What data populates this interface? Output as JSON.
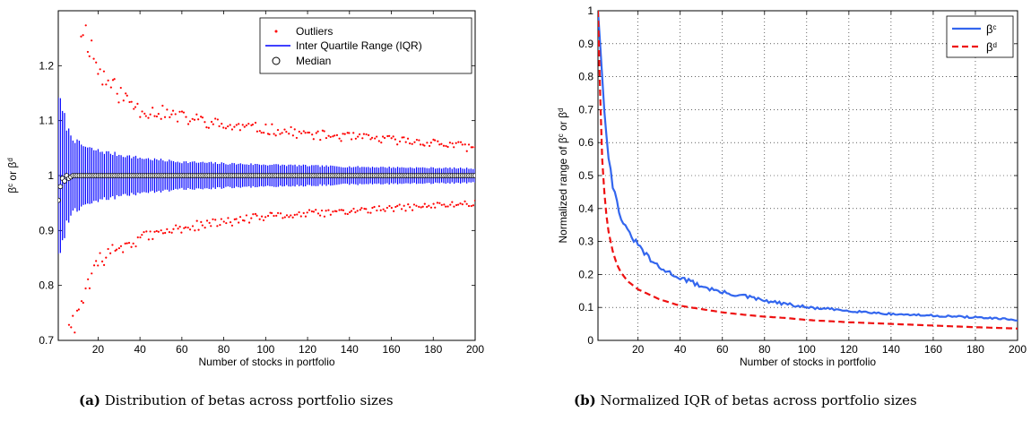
{
  "chart_data": [
    {
      "type": "scatter",
      "label": "(a)",
      "caption": "Distribution of betas across portfolio sizes",
      "xlabel": "Number of stocks in portfolio",
      "ylabel_parts": [
        "β",
        "c",
        " or ",
        "β",
        "d"
      ],
      "xlim": [
        1,
        200
      ],
      "ylim": [
        0.7,
        1.3
      ],
      "xticks": [
        20,
        40,
        60,
        80,
        100,
        120,
        140,
        160,
        180,
        200
      ],
      "yticks": [
        0.7,
        0.8,
        0.9,
        1,
        1.1,
        1.2
      ],
      "ytick_labels": [
        "0.7",
        "0.8",
        "0.9",
        "1",
        "1.1",
        "1.2"
      ],
      "grid": false,
      "legend_position": "top-right",
      "legend": [
        "Outliers",
        "Inter Quartile Range (IQR)",
        "Median"
      ],
      "colors": {
        "outliers": "#ff0000",
        "iqr": "#0000ff",
        "median": "#000000"
      },
      "iqr_halfwidth": {
        "n": [
          1,
          2,
          3,
          4,
          5,
          6,
          8,
          10,
          15,
          20,
          30,
          40,
          50,
          60,
          80,
          100,
          120,
          140,
          160,
          180,
          200
        ],
        "value": [
          0.15,
          0.13,
          0.115,
          0.105,
          0.09,
          0.08,
          0.07,
          0.06,
          0.05,
          0.045,
          0.038,
          0.032,
          0.028,
          0.025,
          0.022,
          0.02,
          0.018,
          0.016,
          0.015,
          0.014,
          0.013
        ]
      },
      "median": {
        "n": [
          1,
          2,
          3,
          4,
          5,
          6,
          8,
          10,
          15,
          20,
          40,
          200
        ],
        "value": [
          0.955,
          0.98,
          0.995,
          0.99,
          1.0,
          0.995,
          1.0,
          1.0,
          1.0,
          1.0,
          1.0,
          1.0
        ]
      },
      "outliers_upper": {
        "n": [
          12,
          14,
          16,
          18,
          20,
          25,
          30,
          40,
          50,
          60,
          70,
          80,
          100,
          120,
          140,
          160,
          180,
          200
        ],
        "value": [
          1.27,
          1.26,
          1.24,
          1.22,
          1.19,
          1.17,
          1.15,
          1.12,
          1.115,
          1.105,
          1.1,
          1.09,
          1.085,
          1.075,
          1.07,
          1.065,
          1.06,
          1.05
        ]
      },
      "outliers_lower": {
        "n": [
          5,
          8,
          10,
          12,
          14,
          16,
          18,
          20,
          25,
          30,
          40,
          50,
          60,
          70,
          80,
          100,
          120,
          140,
          160,
          180,
          200
        ],
        "value": [
          0.7,
          0.73,
          0.75,
          0.77,
          0.79,
          0.8,
          0.82,
          0.84,
          0.86,
          0.87,
          0.885,
          0.895,
          0.905,
          0.91,
          0.915,
          0.925,
          0.93,
          0.935,
          0.94,
          0.945,
          0.95
        ]
      }
    },
    {
      "type": "line",
      "label": "(b)",
      "caption": "Normalized IQR of betas across portfolio sizes",
      "xlabel": "Number of stocks in portfolio",
      "ylabel_parts": [
        "Normalized range of ",
        "β",
        "c",
        " or ",
        "β",
        "d"
      ],
      "xlim": [
        1,
        200
      ],
      "ylim": [
        0,
        1
      ],
      "xticks": [
        20,
        40,
        60,
        80,
        100,
        120,
        140,
        160,
        180,
        200
      ],
      "yticks": [
        0,
        0.1,
        0.2,
        0.3,
        0.4,
        0.5,
        0.6,
        0.7,
        0.8,
        0.9,
        1
      ],
      "ytick_labels": [
        "0",
        "0.1",
        "0.2",
        "0.3",
        "0.4",
        "0.5",
        "0.6",
        "0.7",
        "0.8",
        "0.9",
        "1"
      ],
      "grid": true,
      "legend_position": "top-right",
      "series": [
        {
          "name_base": "β",
          "name_sup": "c",
          "color": "#3366ee",
          "dash": "solid",
          "x": [
            1,
            2,
            4,
            6,
            8,
            10,
            12,
            15,
            20,
            25,
            30,
            40,
            50,
            60,
            70,
            80,
            90,
            100,
            120,
            140,
            160,
            180,
            200
          ],
          "y": [
            1.0,
            0.9,
            0.7,
            0.56,
            0.47,
            0.42,
            0.37,
            0.33,
            0.29,
            0.25,
            0.22,
            0.19,
            0.165,
            0.145,
            0.135,
            0.12,
            0.11,
            0.1,
            0.09,
            0.08,
            0.075,
            0.07,
            0.062
          ]
        },
        {
          "name_base": "β",
          "name_sup": "d",
          "color": "#ee1111",
          "dash": "dashed",
          "x": [
            1,
            2,
            3,
            4,
            5,
            6,
            8,
            10,
            12,
            15,
            20,
            25,
            30,
            40,
            50,
            60,
            70,
            80,
            90,
            100,
            120,
            140,
            160,
            180,
            200
          ],
          "y": [
            1.0,
            0.75,
            0.55,
            0.45,
            0.38,
            0.33,
            0.27,
            0.23,
            0.205,
            0.18,
            0.155,
            0.14,
            0.125,
            0.105,
            0.095,
            0.085,
            0.078,
            0.072,
            0.068,
            0.062,
            0.055,
            0.05,
            0.045,
            0.04,
            0.036
          ]
        }
      ]
    }
  ]
}
